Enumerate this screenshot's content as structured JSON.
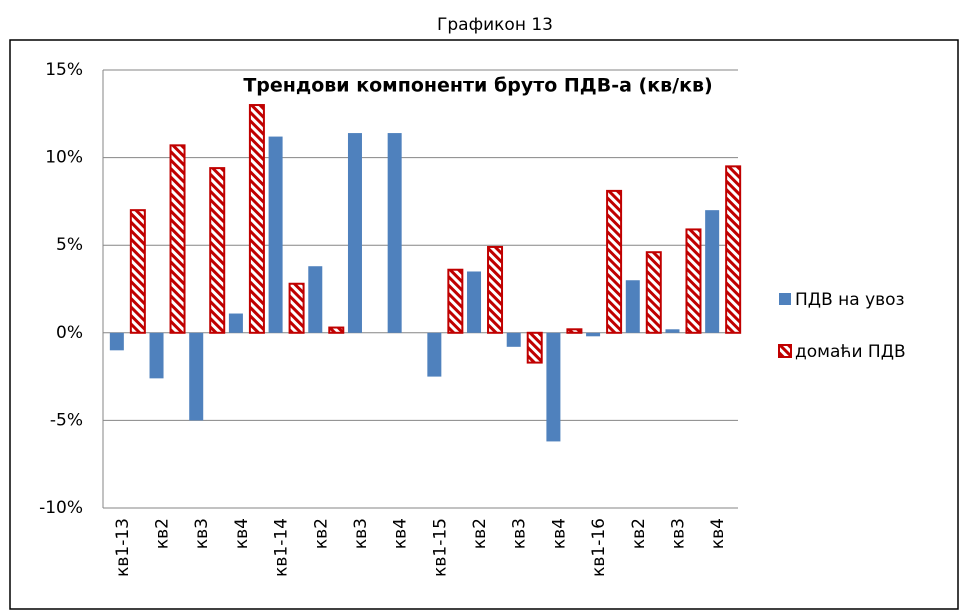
{
  "caption": "Графикон 13",
  "chart_data": {
    "type": "bar",
    "title": "Трендови компоненти бруто ПДВ-а (кв/кв)",
    "categories": [
      "кв1-13",
      "кв2",
      "кв3",
      "кв4",
      "кв1-14",
      "кв2",
      "кв3",
      "кв4",
      "кв1-15",
      "кв2",
      "кв3",
      "кв4",
      "кв1-16",
      "кв2",
      "кв3",
      "кв4"
    ],
    "series": [
      {
        "name": "ПДВ на увоз",
        "color": "#4f81bd",
        "values": [
          -1.0,
          -2.6,
          -5.0,
          1.1,
          11.2,
          3.8,
          11.4,
          11.4,
          -2.5,
          3.5,
          -0.8,
          -6.2,
          -0.2,
          3.0,
          0.2,
          7.0
        ]
      },
      {
        "name": "домаћи ПДВ",
        "color": "#c00000",
        "hatch": true,
        "values": [
          7.0,
          10.7,
          9.4,
          13.0,
          2.8,
          0.3,
          0,
          0,
          3.6,
          4.9,
          -1.7,
          0.2,
          8.1,
          4.6,
          5.9,
          9.5
        ]
      }
    ],
    "ylim": [
      -10,
      15
    ],
    "yticks": [
      {
        "value": -10,
        "label": "-10%"
      },
      {
        "value": -5,
        "label": "-5%"
      },
      {
        "value": 0,
        "label": "0%"
      },
      {
        "value": 5,
        "label": "5%"
      },
      {
        "value": 10,
        "label": "10%"
      },
      {
        "value": 15,
        "label": "15%"
      }
    ],
    "grid": true,
    "legend": "right"
  }
}
